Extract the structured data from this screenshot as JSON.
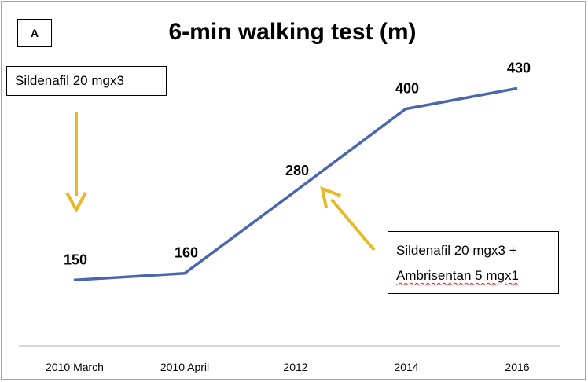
{
  "chart_data": {
    "type": "line",
    "title": "6-min walking test (m)",
    "panel_label": "A",
    "categories": [
      "2010 March",
      "2010 April",
      "2012",
      "2014",
      "2016"
    ],
    "series": [
      {
        "values": [
          150,
          160,
          280,
          400,
          430
        ]
      }
    ],
    "data_labels": [
      "150",
      "160",
      "280",
      "400",
      "430"
    ],
    "xlabel": "",
    "ylabel": "",
    "ylim": [
      100,
      450
    ],
    "grid": false,
    "line_color": "#4a66b0",
    "annotations": [
      {
        "lines": [
          "Sildenafil 20 mgx3"
        ],
        "points_to": "2010 March"
      },
      {
        "lines": [
          "Sildenafil 20 mgx3 +",
          "Ambrisentan 5 mgx1"
        ],
        "points_to": "2012"
      }
    ],
    "arrow_color": "#e8b828"
  }
}
